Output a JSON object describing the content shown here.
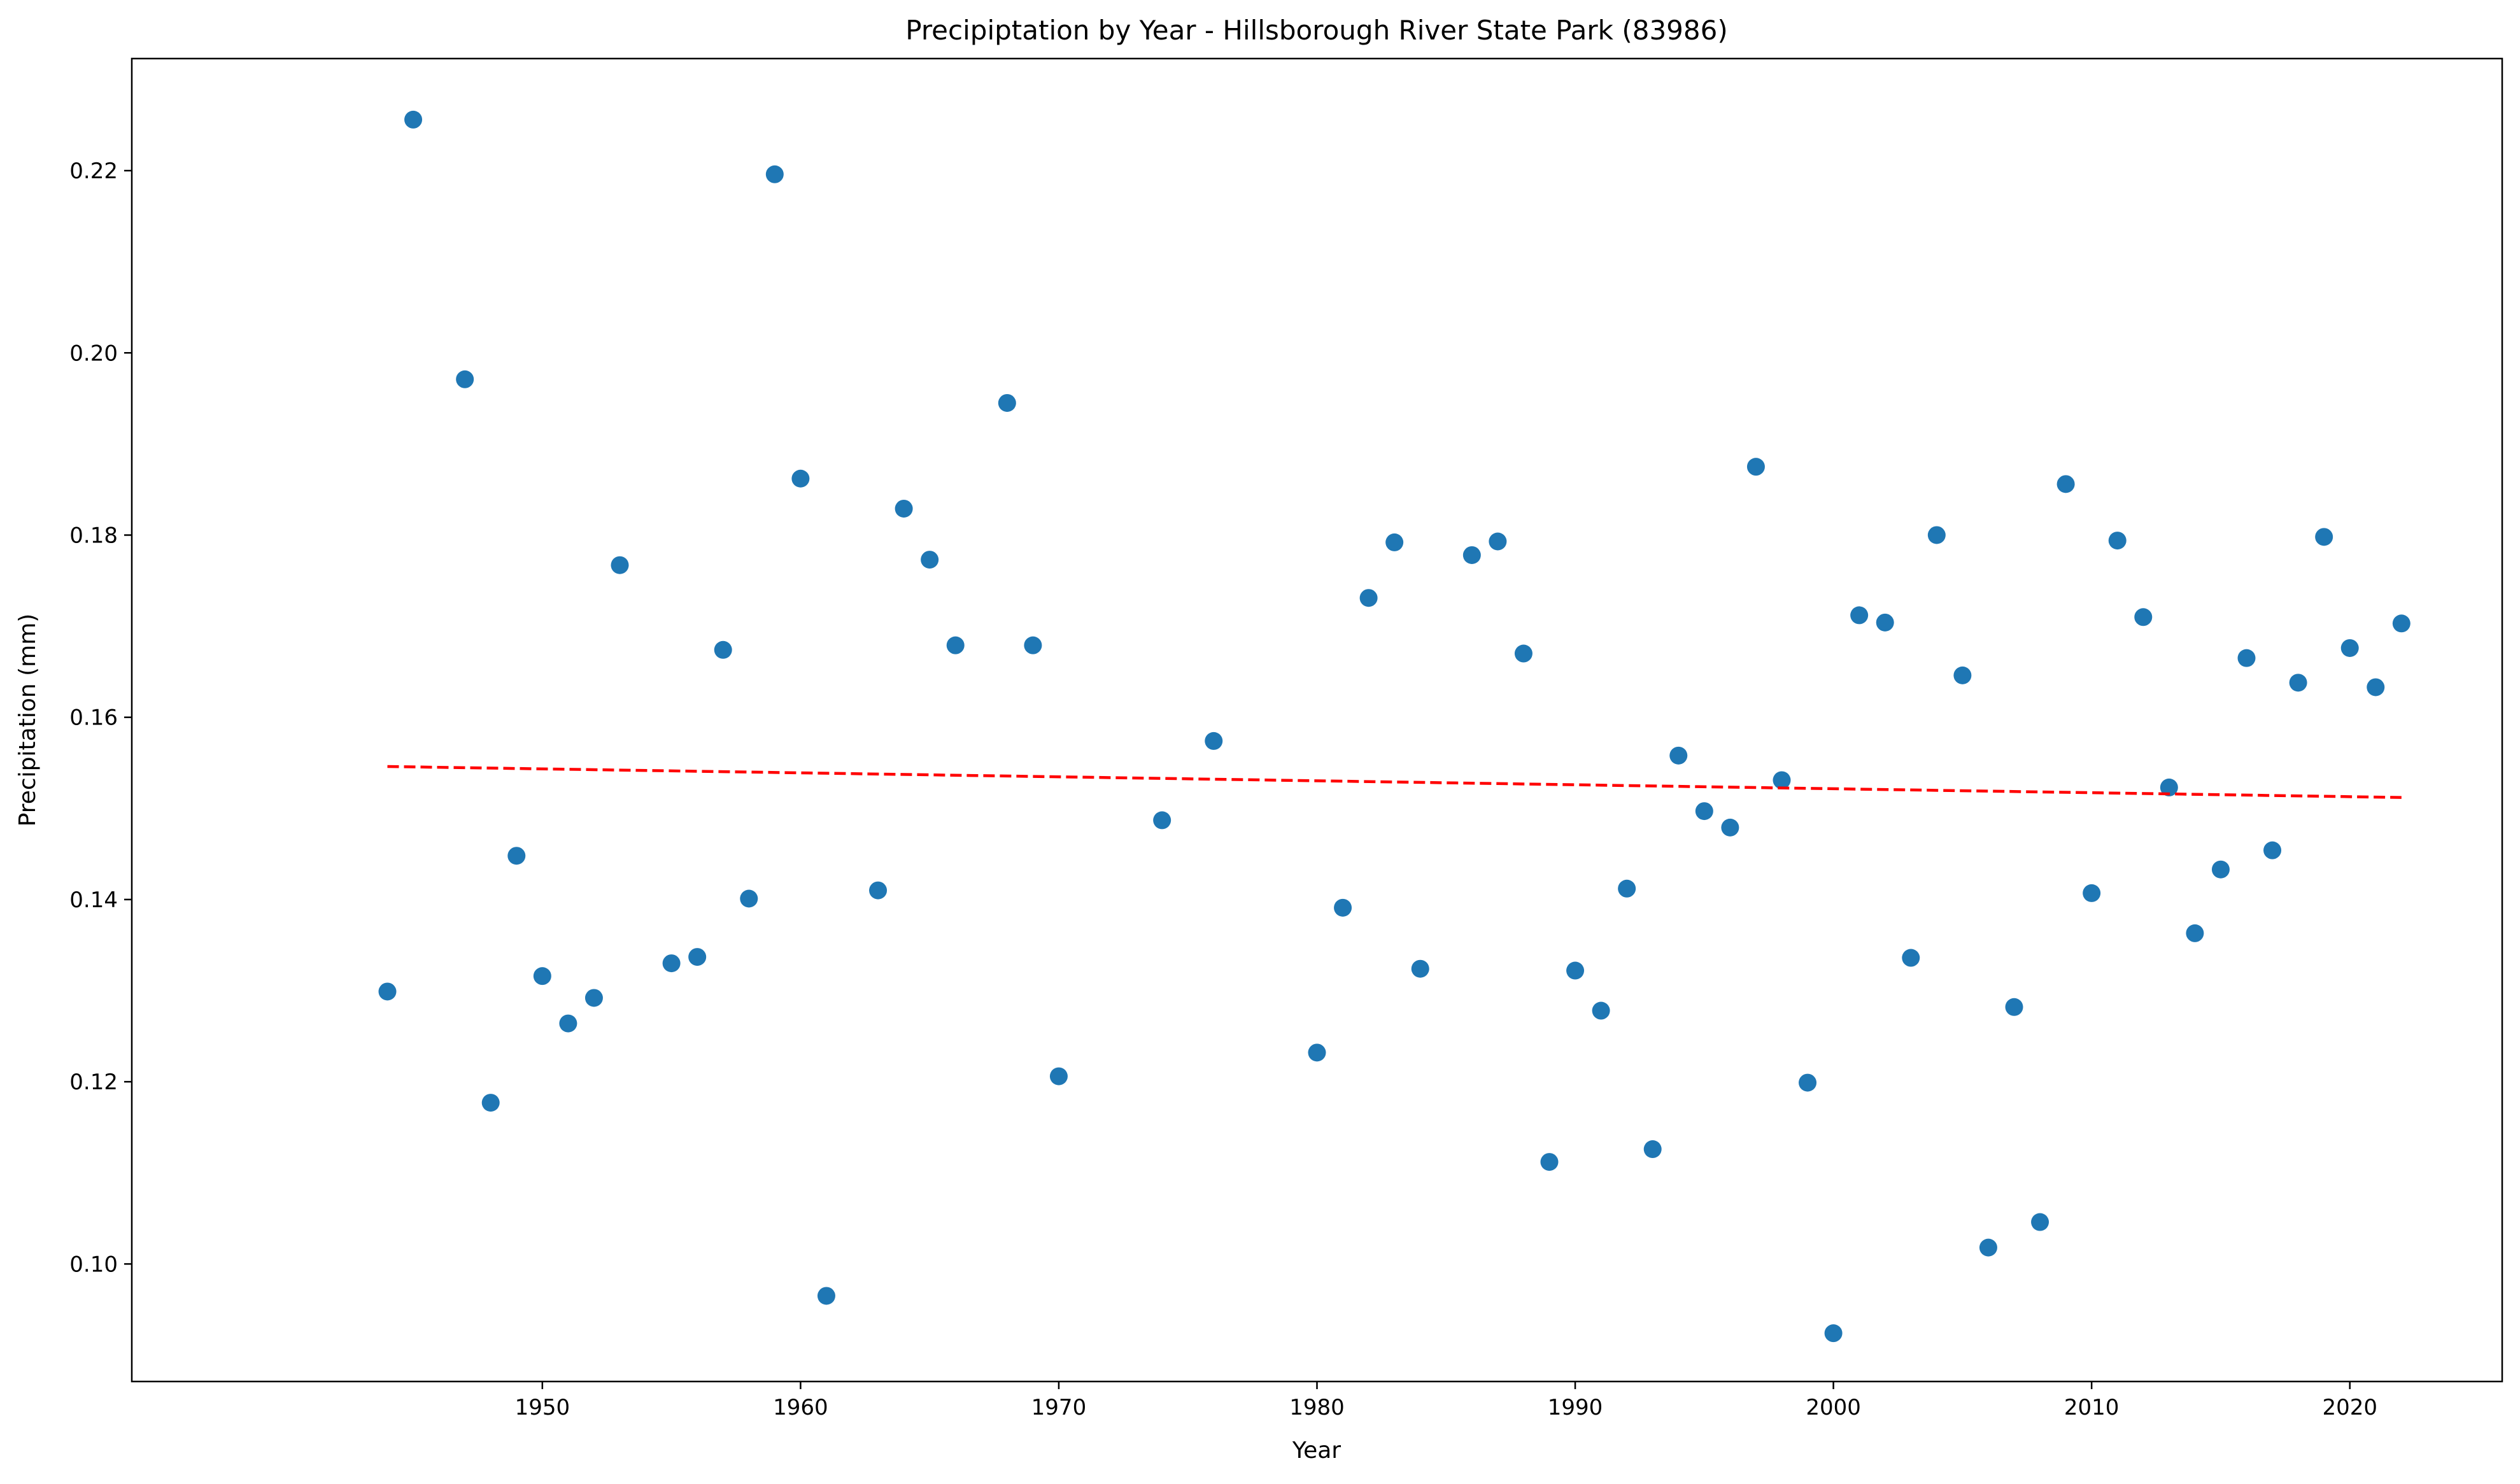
{
  "chart_data": {
    "type": "scatter",
    "title": "Precipiptation by Year - Hillsborough River State Park (83986)",
    "xlabel": "Year",
    "ylabel": "Precipitation (mm)",
    "xlim": [
      1934.1,
      2025.9
    ],
    "ylim": [
      0.0871,
      0.2323
    ],
    "xticks": [
      1950,
      1960,
      1970,
      1980,
      1990,
      2000,
      2010,
      2020
    ],
    "yticks": [
      0.1,
      0.12,
      0.14,
      0.16,
      0.18,
      0.2,
      0.22
    ],
    "grid": false,
    "colors": {
      "points": "#1f77b4",
      "trend": "#ff0000"
    },
    "series": [
      {
        "kind": "points",
        "x": [
          1944,
          1945,
          1947,
          1948,
          1949,
          1950,
          1951,
          1952,
          1953,
          1955,
          1956,
          1957,
          1958,
          1959,
          1960,
          1961,
          1963,
          1964,
          1965,
          1966,
          1968,
          1969,
          1970,
          1974,
          1976,
          1980,
          1981,
          1982,
          1983,
          1984,
          1986,
          1987,
          1988,
          1989,
          1990,
          1991,
          1992,
          1993,
          1994,
          1995,
          1996,
          1997,
          1998,
          1999,
          2000,
          2001,
          2002,
          2003,
          2004,
          2005,
          2006,
          2007,
          2008,
          2009,
          2010,
          2011,
          2012,
          2013,
          2014,
          2015,
          2016,
          2017,
          2018,
          2019,
          2020,
          2021,
          2022
        ],
        "y": [
          0.1299,
          0.2256,
          0.1971,
          0.1177,
          0.1448,
          0.1316,
          0.1264,
          0.1292,
          0.1767,
          0.133,
          0.1337,
          0.1674,
          0.1401,
          0.2196,
          0.1862,
          0.0965,
          0.141,
          0.1829,
          0.1773,
          0.1679,
          0.1945,
          0.1679,
          0.1206,
          0.1487,
          0.1574,
          0.1232,
          0.1391,
          0.1731,
          0.1792,
          0.1324,
          0.1778,
          0.1793,
          0.167,
          0.1112,
          0.1322,
          0.1278,
          0.1412,
          0.1126,
          0.1558,
          0.1497,
          0.1479,
          0.1875,
          0.1531,
          0.1199,
          0.0924,
          0.1712,
          0.1704,
          0.1336,
          0.18,
          0.1646,
          0.1018,
          0.1282,
          0.1046,
          0.1856,
          0.1407,
          0.1794,
          0.171,
          0.1523,
          0.1363,
          0.1433,
          0.1665,
          0.1454,
          0.1638,
          0.1798,
          0.1676,
          0.1633,
          0.1703
        ]
      },
      {
        "kind": "trend",
        "x": [
          1944,
          2022
        ],
        "y": [
          0.1546,
          0.1512
        ]
      }
    ]
  }
}
